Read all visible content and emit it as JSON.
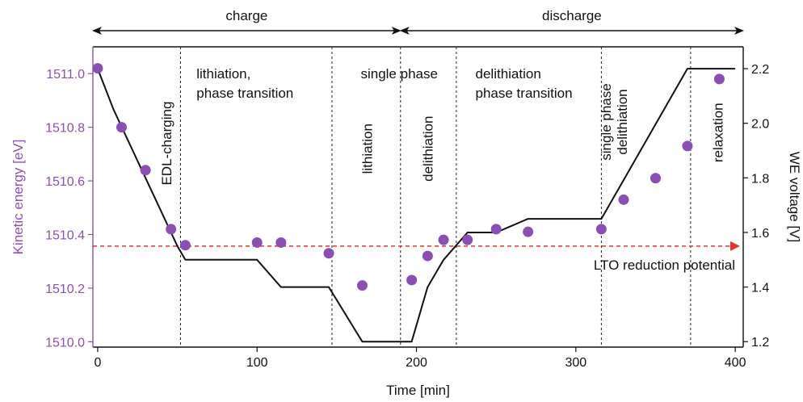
{
  "chart_data": {
    "type": "scatter",
    "xlabel": "Time [min]",
    "ylabel_left": "Kinetic energy [eV]",
    "ylabel_right": "WE voltage [V]",
    "xlim": [
      -3,
      405
    ],
    "ylim_left": [
      1509.98,
      1511.1
    ],
    "ylim_right": [
      1.18,
      2.28
    ],
    "x_ticks": [
      "0",
      "100",
      "200",
      "300",
      "400"
    ],
    "y_left_ticks": [
      "1510.0",
      "1510.2",
      "1510.4",
      "1510.6",
      "1510.8",
      "1511.0"
    ],
    "y_right_ticks": [
      "1.2",
      "1.4",
      "1.6",
      "1.8",
      "2.0",
      "2.2"
    ],
    "colors": {
      "kinetic": "#8b4fb4",
      "voltage": "#111111",
      "reduction": "#e8332a"
    },
    "series": [
      {
        "name": "Kinetic energy [eV]",
        "axis": "left",
        "marker": "circle",
        "x": [
          0,
          15,
          30,
          46,
          55,
          100,
          115,
          145,
          166,
          197,
          207,
          217,
          232,
          250,
          270,
          316,
          330,
          350,
          370,
          390
        ],
        "y": [
          1511.02,
          1510.8,
          1510.64,
          1510.42,
          1510.36,
          1510.37,
          1510.37,
          1510.33,
          1510.21,
          1510.23,
          1510.32,
          1510.38,
          1510.38,
          1510.42,
          1510.41,
          1510.42,
          1510.53,
          1510.61,
          1510.73,
          1510.98
        ]
      },
      {
        "name": "WE voltage [V]",
        "axis": "right",
        "marker": "line",
        "x": [
          0,
          10,
          50,
          55,
          100,
          115,
          145,
          166,
          190,
          197,
          207,
          217,
          232,
          250,
          270,
          316,
          370,
          400
        ],
        "y": [
          2.2,
          2.05,
          1.55,
          1.5,
          1.5,
          1.4,
          1.4,
          1.2,
          1.2,
          1.2,
          1.4,
          1.5,
          1.6,
          1.6,
          1.65,
          1.65,
          2.2,
          2.2
        ]
      }
    ],
    "reference_line": {
      "axis": "right",
      "y": 1.55,
      "label": "LTO reduction potential"
    },
    "phase_boundaries": [
      52,
      147,
      190,
      225,
      316,
      372
    ],
    "arrows": [
      {
        "label": "charge",
        "from": -3,
        "to": 190
      },
      {
        "label": "discharge",
        "from": 190,
        "to": 405
      }
    ],
    "annotations": {
      "horizontal": [
        {
          "lines": [
            "lithiation,",
            "phase transition"
          ],
          "x": 62,
          "y": 1511.0
        },
        {
          "lines": [
            "single phase"
          ],
          "x": 165,
          "y": 1511.0
        },
        {
          "lines": [
            "delithiation",
            "phase transition"
          ],
          "x": 237,
          "y": 1511.0
        }
      ],
      "vertical": [
        {
          "lines": [
            "EDL-charging"
          ],
          "x": 43,
          "y": 1510.74
        },
        {
          "lines": [
            "lithiation"
          ],
          "x": 169,
          "y": 1510.72
        },
        {
          "lines": [
            "delithiation"
          ],
          "x": 207,
          "y": 1510.72
        },
        {
          "lines": [
            "single phase",
            "delithiation"
          ],
          "x": 324,
          "y": 1510.82
        },
        {
          "lines": [
            "relaxation"
          ],
          "x": 389,
          "y": 1510.78
        }
      ]
    }
  }
}
